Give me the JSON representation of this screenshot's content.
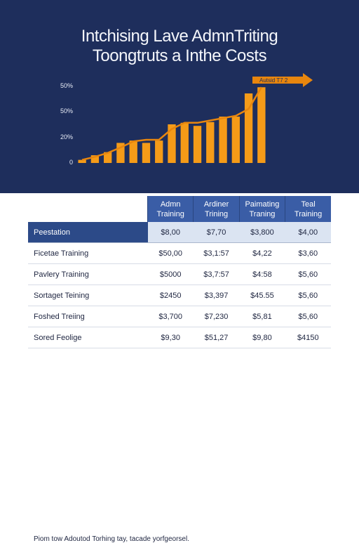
{
  "chart_data": {
    "type": "bar",
    "title": "Intchising Lave AdmnTriting",
    "subtitle": "Toongtruts a Inthe Costs",
    "yticks": [
      "0",
      "20%",
      "50%",
      "50%"
    ],
    "ylim": [
      0,
      100
    ],
    "values": [
      4,
      10,
      14,
      26,
      29,
      26,
      29,
      50,
      52,
      48,
      53,
      60,
      60,
      90,
      98
    ],
    "trend": [
      4,
      8,
      13,
      20,
      28,
      30,
      30,
      44,
      52,
      52,
      55,
      58,
      61,
      70,
      98
    ],
    "callout": "Autsid T7 2",
    "colors": {
      "bar": "#f59b18",
      "line": "#e8860e",
      "background": "#1e2e5c"
    }
  },
  "table": {
    "headers": [
      {
        "line1": "Admn",
        "line2": "Training"
      },
      {
        "line1": "Ardiner",
        "line2": "Trining"
      },
      {
        "line1": "Paimating",
        "line2": "Traning"
      },
      {
        "line1": "Teal",
        "line2": "Training"
      }
    ],
    "rows": [
      {
        "label": "Peestation",
        "values": [
          "$8,00",
          "$7,70",
          "$3,800",
          "$4,00"
        ]
      },
      {
        "label": "Ficetae Training",
        "values": [
          "$50,00",
          "$3,1:57",
          "$4,22",
          "$3,60"
        ]
      },
      {
        "label": "Pavlery Training",
        "values": [
          "$5000",
          "$3,7:57",
          "$4:58",
          "$5,60"
        ]
      },
      {
        "label": "Sortaget Teining",
        "values": [
          "$2450",
          "$3,397",
          "$45.55",
          "$5,60"
        ]
      },
      {
        "label": "Foshed Treiing",
        "values": [
          "$3,700",
          "$7,230",
          "$5,81",
          "$5,60"
        ]
      },
      {
        "label": "Sored Feolige",
        "values": [
          "$9,30",
          "$51,27",
          "$9,80",
          "$4150"
        ]
      }
    ]
  },
  "footnote": "Piom tow Adoutod Torhing tay, tacade yorfgeorsel."
}
